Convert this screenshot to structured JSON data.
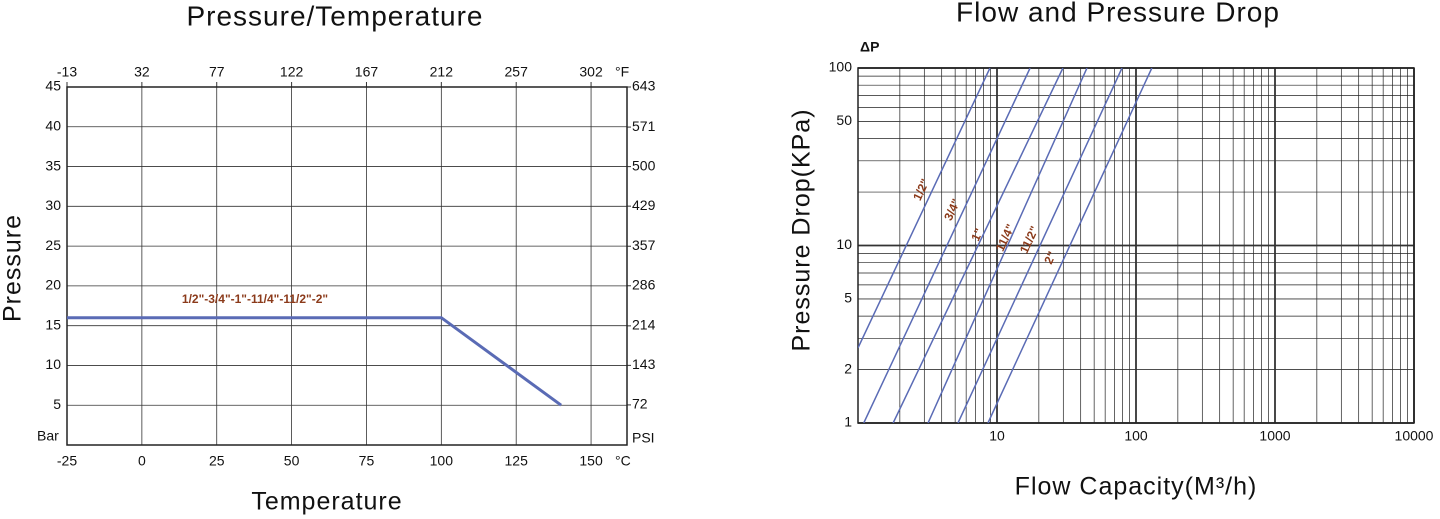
{
  "chart_data": [
    {
      "type": "line",
      "title": "Pressure/Temperature",
      "x_label": "Temperature",
      "y_label": "Pressure",
      "x_unit": "°C",
      "x2_unit": "°F",
      "y_unit": "Bar",
      "y2_unit": "PSI",
      "xlim": [
        -25,
        162
      ],
      "xticks": [
        -25,
        0,
        25,
        50,
        75,
        100,
        125,
        150
      ],
      "x2lim": [
        -13,
        323.6
      ],
      "x2ticks": [
        -13,
        32,
        77,
        122,
        167,
        212,
        257,
        302
      ],
      "ylim": [
        0,
        45
      ],
      "yticks": [
        5,
        10,
        15,
        20,
        25,
        30,
        35,
        40,
        45
      ],
      "y2lim": [
        0,
        643
      ],
      "y2ticks": [
        72,
        143,
        214,
        286,
        357,
        429,
        500,
        571,
        643
      ],
      "grid": true,
      "log_x": false,
      "log_y": false,
      "series": [
        {
          "name": "1/2\"-3/4\"-1\"-11/4\"-11/2\"-2\"",
          "color": "#5a6bb5",
          "label_color": "#8b3a1a",
          "x": [
            -25,
            100,
            140
          ],
          "values": [
            16,
            16,
            5
          ]
        }
      ]
    },
    {
      "type": "line",
      "title": "Flow and Pressure Drop",
      "x_label": "Flow Capacity(M³/h)",
      "y_label": "Pressure Drop(KPa)",
      "y_unit": "ΔP",
      "xlim": [
        1,
        10000
      ],
      "xticks": [
        10,
        100,
        1000,
        10000
      ],
      "ylim": [
        1,
        100
      ],
      "yticks": [
        1,
        2,
        5,
        10,
        50,
        100
      ],
      "grid": true,
      "minor_grid": true,
      "log_x": true,
      "log_y": true,
      "series": [
        {
          "name": "1/2\"",
          "color": "#5a6bb5",
          "label_color": "#8b3a1a",
          "x": [
            1,
            8.9
          ],
          "values": [
            2.65,
            100
          ]
        },
        {
          "name": "3/4\"",
          "color": "#5a6bb5",
          "label_color": "#8b3a1a",
          "x": [
            1.1,
            17.3
          ],
          "values": [
            1,
            100
          ]
        },
        {
          "name": "1\"",
          "color": "#5a6bb5",
          "label_color": "#8b3a1a",
          "x": [
            1.79,
            29.8
          ],
          "values": [
            1,
            100
          ]
        },
        {
          "name": "11/4\"",
          "color": "#5a6bb5",
          "label_color": "#8b3a1a",
          "x": [
            3.19,
            44.4
          ],
          "values": [
            1,
            100
          ]
        },
        {
          "name": "11/2\"",
          "color": "#5a6bb5",
          "label_color": "#8b3a1a",
          "x": [
            5.24,
            79.3
          ],
          "values": [
            1,
            100
          ]
        },
        {
          "name": "2\"",
          "color": "#5a6bb5",
          "label_color": "#8b3a1a",
          "x": [
            8.61,
            130
          ],
          "values": [
            1,
            100
          ]
        }
      ]
    }
  ]
}
